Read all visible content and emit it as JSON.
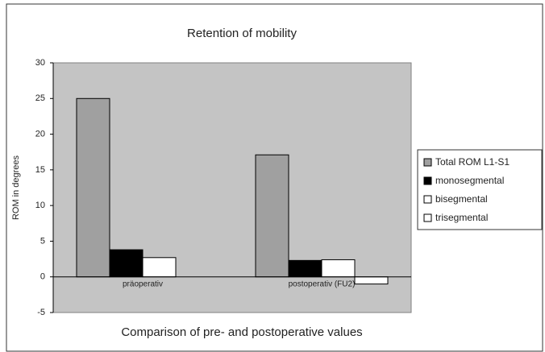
{
  "chart_data": {
    "type": "bar",
    "title": "Retention of mobility",
    "x_label": "Comparison of pre- and postoperative values",
    "y_label": "ROM in degrees",
    "categories": [
      "präoperativ",
      "postoperativ (FU2)"
    ],
    "series": [
      {
        "name": "Total ROM L1-S1",
        "color": "#a0a0a0",
        "values": [
          25,
          17.1
        ]
      },
      {
        "name": "monosegmental",
        "color": "#000000",
        "values": [
          3.8,
          2.3
        ]
      },
      {
        "name": "bisegmental",
        "color": "#ffffff",
        "values": [
          2.7,
          2.4
        ]
      },
      {
        "name": "trisegmental",
        "color": "#ffffff",
        "values": [
          null,
          -1
        ]
      }
    ],
    "ylim": [
      -5,
      30
    ],
    "yticks": [
      -5,
      0,
      5,
      10,
      15,
      20,
      25,
      30
    ],
    "legend": "right",
    "background": "#c4c4c4"
  }
}
